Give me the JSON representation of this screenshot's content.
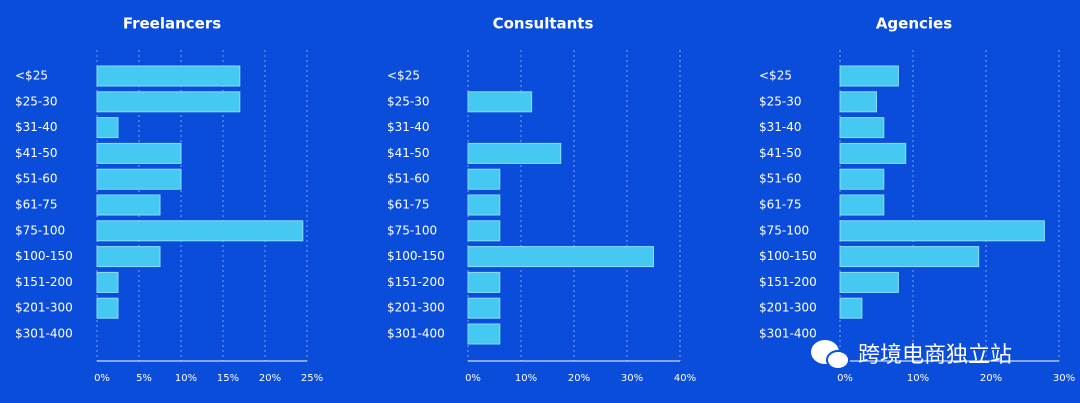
{
  "chart_data": [
    {
      "type": "bar",
      "orientation": "horizontal",
      "title": "Freelancers",
      "categories": [
        "<$25",
        "$25-30",
        "$31-40",
        "$41-50",
        "$51-60",
        "$61-75",
        "$75-100",
        "$100-150",
        "$151-200",
        "$201-300",
        "$301-400"
      ],
      "values": [
        17,
        17,
        2.5,
        10,
        10,
        7.5,
        24.5,
        7.5,
        2.5,
        2.5,
        0
      ],
      "color": "#45c8f2",
      "xlim": [
        0,
        25
      ],
      "xticks": [
        {
          "value": 0,
          "label": "0%"
        },
        {
          "value": 5,
          "label": "5%"
        },
        {
          "value": 10,
          "label": "10%"
        },
        {
          "value": 15,
          "label": "15%"
        },
        {
          "value": 20,
          "label": "20%"
        },
        {
          "value": 25,
          "label": "25%"
        }
      ],
      "grid": true
    },
    {
      "type": "bar",
      "orientation": "horizontal",
      "title": "Consultants",
      "categories": [
        "<$25",
        "$25-30",
        "$31-40",
        "$41-50",
        "$51-60",
        "$61-75",
        "$75-100",
        "$100-150",
        "$151-200",
        "$201-300",
        "$301-400"
      ],
      "values": [
        0,
        12,
        0,
        17.5,
        6,
        6,
        6,
        35,
        6,
        6,
        6
      ],
      "color": "#45c8f2",
      "xlim": [
        0,
        40
      ],
      "xticks": [
        {
          "value": 0,
          "label": "0%"
        },
        {
          "value": 10,
          "label": "10%"
        },
        {
          "value": 20,
          "label": "20%"
        },
        {
          "value": 30,
          "label": "30%"
        },
        {
          "value": 40,
          "label": "40%"
        }
      ],
      "grid": true
    },
    {
      "type": "bar",
      "orientation": "horizontal",
      "title": "Agencies",
      "categories": [
        "<$25",
        "$25-30",
        "$31-40",
        "$41-50",
        "$51-60",
        "$61-75",
        "$75-100",
        "$100-150",
        "$151-200",
        "$201-300",
        "$301-400"
      ],
      "values": [
        8,
        5,
        6,
        9,
        6,
        6,
        28,
        19,
        8,
        3,
        0
      ],
      "color": "#45c8f2",
      "xlim": [
        0,
        30
      ],
      "xticks": [
        {
          "value": 0,
          "label": "0%"
        },
        {
          "value": 10,
          "label": "10%"
        },
        {
          "value": 20,
          "label": "20%"
        },
        {
          "value": 30,
          "label": "30%"
        }
      ],
      "grid": true
    }
  ],
  "watermark": "跨境电商独立站"
}
